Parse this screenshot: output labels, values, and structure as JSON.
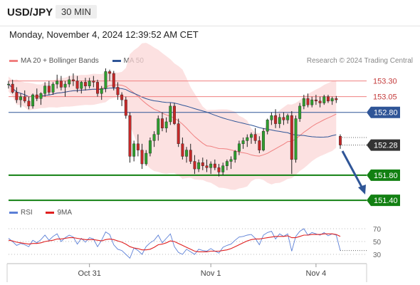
{
  "header": {
    "symbol": "USD/JPY",
    "timeframe": "30 MIN",
    "datetime": "Monday, November 4, 2024 12:39:52 AM CET"
  },
  "legend": {
    "ma20_label": "MA 20 + Bollinger Bands",
    "ma50_label": "MA 50",
    "credit": "Research © 2024 Trading Central",
    "rsi_label": "RSI",
    "rsi_ma_label": "9MA"
  },
  "colors": {
    "ma20": "#f08080",
    "ma50": "#2f5597",
    "rsi": "#5b7fd6",
    "rsi_ma": "#e02020",
    "green_level": "#128012",
    "blue_level": "#2f5597",
    "red_level": "#f08080",
    "current_price": "#333333",
    "arrow": "#2f5597"
  },
  "chart_data": [
    {
      "type": "candlestick",
      "ylim": [
        151.3,
        153.5
      ],
      "levels": [
        {
          "value": 153.3,
          "label": "153.30",
          "style": "resistance"
        },
        {
          "value": 153.05,
          "label": "153.05",
          "style": "resistance"
        },
        {
          "value": 152.8,
          "label": "152.80",
          "style": "pivot"
        },
        {
          "value": 152.28,
          "label": "152.28",
          "style": "current"
        },
        {
          "value": 151.8,
          "label": "151.80",
          "style": "support"
        },
        {
          "value": 151.4,
          "label": "151.40",
          "style": "support"
        }
      ],
      "x_ticks": [
        {
          "index": 20,
          "label": "Oct 31"
        },
        {
          "index": 50,
          "label": "Nov 1"
        },
        {
          "index": 76,
          "label": "Nov 4"
        }
      ],
      "ohlc": [
        [
          153.24,
          153.3,
          153.18,
          153.25
        ],
        [
          153.25,
          153.32,
          153.1,
          153.12
        ],
        [
          153.12,
          153.2,
          152.95,
          153.0
        ],
        [
          153.0,
          153.1,
          152.88,
          153.05
        ],
        [
          153.05,
          153.15,
          152.95,
          152.98
        ],
        [
          152.98,
          153.05,
          152.85,
          152.9
        ],
        [
          152.9,
          153.1,
          152.86,
          153.08
        ],
        [
          153.08,
          153.18,
          152.98,
          153.02
        ],
        [
          153.02,
          153.12,
          152.92,
          153.1
        ],
        [
          153.1,
          153.28,
          153.05,
          153.22
        ],
        [
          153.22,
          153.3,
          153.08,
          153.12
        ],
        [
          153.12,
          153.28,
          153.08,
          153.25
        ],
        [
          153.25,
          153.4,
          153.18,
          153.3
        ],
        [
          153.3,
          153.38,
          153.15,
          153.2
        ],
        [
          153.2,
          153.3,
          153.05,
          153.25
        ],
        [
          153.25,
          153.38,
          153.2,
          153.32
        ],
        [
          153.32,
          153.42,
          153.22,
          153.3
        ],
        [
          153.3,
          153.38,
          153.12,
          153.18
        ],
        [
          153.18,
          153.3,
          153.1,
          153.28
        ],
        [
          153.28,
          153.35,
          153.15,
          153.22
        ],
        [
          153.22,
          153.35,
          153.18,
          153.3
        ],
        [
          153.3,
          153.38,
          153.2,
          153.28
        ],
        [
          153.28,
          153.32,
          153.05,
          153.1
        ],
        [
          153.1,
          153.22,
          153.0,
          153.18
        ],
        [
          153.18,
          153.5,
          153.12,
          153.45
        ],
        [
          153.45,
          153.48,
          153.3,
          153.42
        ],
        [
          153.42,
          153.46,
          153.15,
          153.2
        ],
        [
          153.2,
          153.28,
          153.0,
          153.08
        ],
        [
          153.08,
          153.12,
          152.9,
          153.0
        ],
        [
          153.0,
          153.05,
          152.7,
          152.75
        ],
        [
          152.75,
          152.8,
          152.0,
          152.1
        ],
        [
          152.1,
          152.35,
          152.02,
          152.3
        ],
        [
          152.3,
          152.45,
          152.1,
          152.2
        ],
        [
          152.2,
          152.3,
          151.9,
          151.98
        ],
        [
          151.98,
          152.2,
          151.95,
          152.15
        ],
        [
          152.15,
          152.4,
          152.1,
          152.35
        ],
        [
          152.35,
          152.5,
          152.25,
          152.45
        ],
        [
          152.45,
          152.75,
          152.35,
          152.7
        ],
        [
          152.7,
          152.8,
          152.5,
          152.55
        ],
        [
          152.55,
          152.72,
          152.48,
          152.65
        ],
        [
          152.65,
          152.95,
          152.6,
          152.9
        ],
        [
          152.9,
          152.95,
          152.6,
          152.62
        ],
        [
          152.62,
          152.7,
          152.25,
          152.3
        ],
        [
          152.3,
          152.4,
          152.05,
          152.1
        ],
        [
          152.1,
          152.25,
          152.0,
          152.2
        ],
        [
          152.2,
          152.3,
          151.98,
          152.02
        ],
        [
          152.02,
          152.12,
          151.82,
          151.9
        ],
        [
          151.9,
          152.05,
          151.85,
          152.0
        ],
        [
          152.0,
          152.08,
          151.88,
          151.95
        ],
        [
          151.95,
          152.05,
          151.85,
          151.92
        ],
        [
          151.92,
          152.02,
          151.82,
          151.98
        ],
        [
          151.98,
          152.05,
          151.88,
          151.92
        ],
        [
          151.92,
          151.98,
          151.78,
          151.85
        ],
        [
          151.85,
          152.0,
          151.8,
          151.95
        ],
        [
          151.95,
          152.05,
          151.88,
          152.02
        ],
        [
          152.02,
          152.1,
          151.9,
          152.05
        ],
        [
          152.05,
          152.2,
          152.0,
          152.18
        ],
        [
          152.18,
          152.35,
          152.12,
          152.3
        ],
        [
          152.3,
          152.4,
          152.22,
          152.35
        ],
        [
          152.35,
          152.45,
          152.25,
          152.4
        ],
        [
          152.4,
          152.48,
          152.3,
          152.45
        ],
        [
          152.45,
          152.55,
          152.3,
          152.35
        ],
        [
          152.35,
          152.42,
          152.15,
          152.2
        ],
        [
          152.2,
          152.55,
          152.18,
          152.5
        ],
        [
          152.5,
          152.7,
          152.45,
          152.68
        ],
        [
          152.68,
          152.8,
          152.6,
          152.75
        ],
        [
          152.75,
          152.85,
          152.55,
          152.62
        ],
        [
          152.62,
          152.78,
          152.55,
          152.72
        ],
        [
          152.72,
          152.8,
          152.6,
          152.68
        ],
        [
          152.68,
          152.78,
          152.62,
          152.75
        ],
        [
          152.75,
          152.82,
          151.82,
          152.05
        ],
        [
          152.05,
          152.75,
          152.0,
          152.7
        ],
        [
          152.7,
          152.95,
          152.65,
          152.9
        ],
        [
          152.9,
          153.08,
          152.85,
          153.02
        ],
        [
          153.02,
          153.1,
          152.88,
          152.92
        ],
        [
          152.92,
          153.05,
          152.88,
          153.0
        ],
        [
          153.0,
          153.08,
          152.92,
          152.98
        ],
        [
          152.98,
          153.05,
          152.88,
          152.95
        ],
        [
          152.95,
          153.08,
          152.92,
          153.05
        ],
        [
          153.05,
          153.08,
          152.95,
          152.98
        ],
        [
          152.98,
          153.05,
          152.92,
          153.02
        ],
        [
          153.02,
          153.06,
          152.95,
          153.0
        ],
        [
          152.42,
          152.45,
          152.22,
          152.28
        ]
      ]
    },
    {
      "type": "line",
      "name": "RSI",
      "ylim": [
        20,
        80
      ],
      "y_ticks": [
        70,
        50,
        30
      ],
      "rsi": [
        55,
        50,
        44,
        47,
        45,
        42,
        52,
        48,
        53,
        60,
        52,
        58,
        62,
        50,
        56,
        60,
        57,
        46,
        55,
        49,
        56,
        54,
        42,
        52,
        65,
        61,
        45,
        38,
        36,
        30,
        24,
        40,
        36,
        30,
        42,
        48,
        52,
        60,
        48,
        55,
        62,
        42,
        33,
        30,
        38,
        34,
        30,
        38,
        36,
        35,
        39,
        35,
        32,
        41,
        44,
        46,
        52,
        57,
        58,
        60,
        61,
        55,
        45,
        60,
        64,
        66,
        54,
        62,
        58,
        62,
        35,
        58,
        66,
        70,
        60,
        64,
        62,
        60,
        64,
        59,
        62,
        60,
        36
      ],
      "rsi_ma": [
        52,
        51,
        49,
        48,
        47,
        46,
        47,
        47,
        48,
        50,
        51,
        52,
        54,
        54,
        55,
        56,
        56,
        55,
        54,
        53,
        53,
        53,
        52,
        51,
        53,
        54,
        53,
        51,
        49,
        46,
        42,
        40,
        39,
        37,
        37,
        38,
        41,
        45,
        46,
        48,
        51,
        50,
        47,
        44,
        41,
        38,
        35,
        34,
        34,
        34,
        35,
        35,
        35,
        36,
        37,
        39,
        42,
        45,
        48,
        51,
        53,
        54,
        54,
        55,
        56,
        57,
        58,
        58,
        58,
        59,
        56,
        56,
        58,
        60,
        60,
        61,
        61,
        61,
        62,
        62,
        62,
        61,
        58
      ]
    }
  ]
}
